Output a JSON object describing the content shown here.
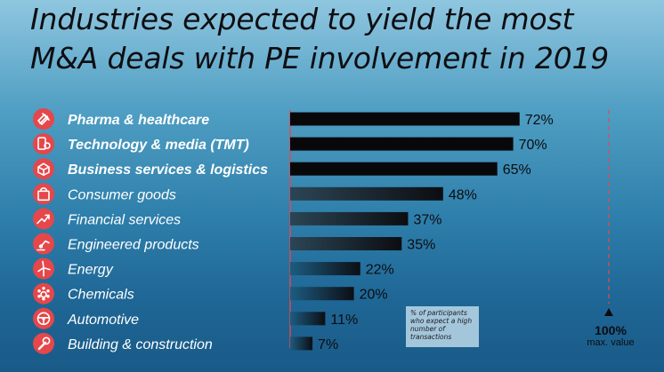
{
  "title": {
    "line1": "Industries expected to yield the most",
    "line2": "M&A deals with PE involvement in 2019"
  },
  "note": "% of participants who expect a high number of transactions",
  "max_marker": {
    "value_label": "100%",
    "caption": "max. value"
  },
  "colors": {
    "bar_highlight": "#08080b",
    "bar_top_start": "#2b4555",
    "bar_top_end": "#0c0d11",
    "bar_bottom_start": "#1d5c80",
    "bar_bottom_end": "#0c0e14",
    "icon_circle": "#e5474a",
    "axis_line": "#e54a4c"
  },
  "chart_data": {
    "type": "bar",
    "orientation": "horizontal",
    "title": "Industries expected to yield the most M&A deals with PE involvement in 2019",
    "xlabel": "% of participants who expect a high number of transactions",
    "ylabel": "",
    "xlim": [
      0,
      100
    ],
    "reference_line": 100,
    "categories": [
      "Pharma & healthcare",
      "Technology & media (TMT)",
      "Business services & logistics",
      "Consumer goods",
      "Financial services",
      "Engineered products",
      "Energy",
      "Chemicals",
      "Automotive",
      "Building & construction"
    ],
    "values": [
      72,
      70,
      65,
      48,
      37,
      35,
      22,
      20,
      11,
      7
    ],
    "value_labels": [
      "72%",
      "70%",
      "65%",
      "48%",
      "37%",
      "35%",
      "22%",
      "20%",
      "11%",
      "7%"
    ],
    "highlighted": [
      true,
      true,
      true,
      false,
      false,
      false,
      false,
      false,
      false,
      false
    ],
    "icons": [
      "pill-bottle-icon",
      "smartphone-gear-icon",
      "box-icon",
      "shopping-bag-icon",
      "trend-up-arrow-icon",
      "robot-arm-icon",
      "wind-turbine-icon",
      "molecule-icon",
      "steering-wheel-icon",
      "wrench-icon"
    ]
  }
}
